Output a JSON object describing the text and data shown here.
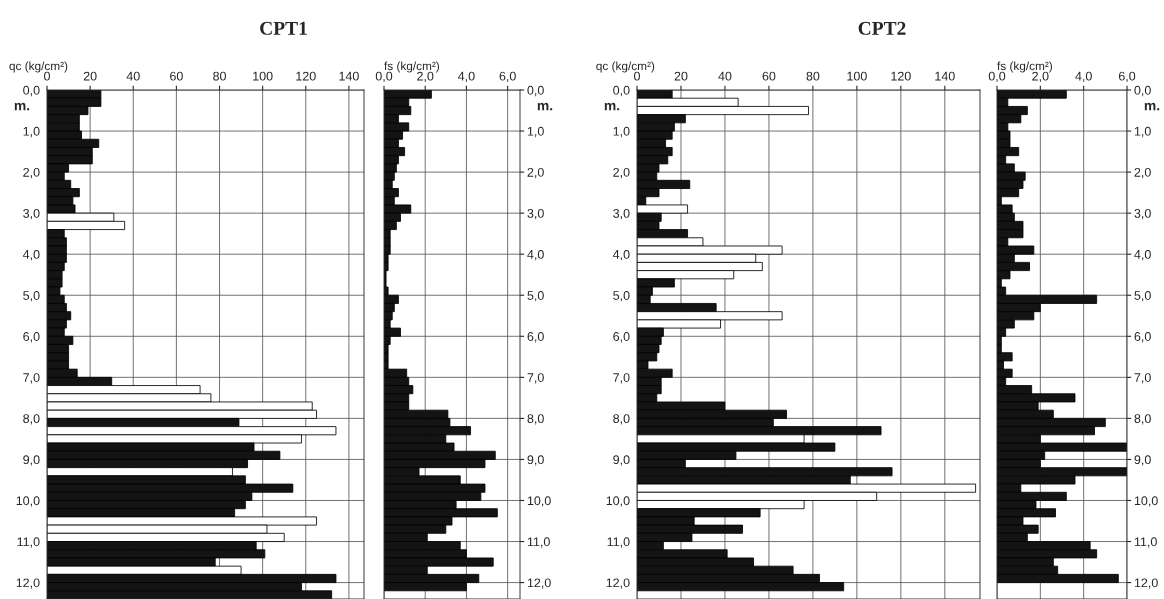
{
  "chart_data": [
    {
      "type": "bar",
      "orientation": "horizontal",
      "title": "CPT1",
      "xlabel": "qc (kg/cm²)",
      "grid": true,
      "annotations": [
        "m."
      ],
      "x": [
        0.1,
        0.3,
        0.5,
        0.7,
        0.9,
        1.1,
        1.3,
        1.5,
        1.7,
        1.9,
        2.1,
        2.3,
        2.5,
        2.7,
        2.9,
        3.1,
        3.3,
        3.5,
        3.7,
        3.9,
        4.1,
        4.3,
        4.5,
        4.7,
        4.9,
        5.1,
        5.3,
        5.5,
        5.7,
        5.9,
        6.1,
        6.3,
        6.5,
        6.7,
        6.9,
        7.1,
        7.3,
        7.5,
        7.7,
        7.9,
        8.1,
        8.3,
        8.5,
        8.7,
        8.9,
        9.1,
        9.3,
        9.5,
        9.7,
        9.9,
        10.1,
        10.3,
        10.5,
        10.7,
        10.9,
        11.1,
        11.3,
        11.5,
        11.7,
        11.9,
        12.1,
        12.3
      ],
      "values": [
        25,
        25,
        19,
        15,
        15,
        16,
        24,
        21,
        21,
        10,
        8,
        11,
        15,
        12,
        13,
        31,
        36,
        8,
        9,
        9,
        9,
        8,
        7,
        7,
        6,
        8,
        9,
        11,
        9,
        8,
        12,
        10,
        10,
        10,
        14,
        30,
        71,
        76,
        123,
        125,
        89,
        134,
        118,
        96,
        108,
        93,
        86,
        92,
        114,
        95,
        92,
        87,
        125,
        102,
        110,
        97,
        101,
        78,
        90,
        134,
        118,
        132
      ],
      "colors": [
        "#141414",
        "#141414",
        "#141414",
        "#141414",
        "#141414",
        "#141414",
        "#141414",
        "#141414",
        "#141414",
        "#141414",
        "#141414",
        "#141414",
        "#141414",
        "#141414",
        "#141414",
        "#ffffff",
        "#ffffff",
        "#141414",
        "#141414",
        "#141414",
        "#141414",
        "#141414",
        "#141414",
        "#141414",
        "#141414",
        "#141414",
        "#141414",
        "#141414",
        "#141414",
        "#141414",
        "#141414",
        "#141414",
        "#141414",
        "#141414",
        "#141414",
        "#141414",
        "#ffffff",
        "#ffffff",
        "#ffffff",
        "#ffffff",
        "#141414",
        "#ffffff",
        "#ffffff",
        "#141414",
        "#141414",
        "#141414",
        "#ffffff",
        "#141414",
        "#141414",
        "#141414",
        "#141414",
        "#141414",
        "#ffffff",
        "#ffffff",
        "#ffffff",
        "#141414",
        "#141414",
        "#141414",
        "#ffffff",
        "#141414",
        "#141414",
        "#141414"
      ],
      "xlim": [
        0,
        147
      ],
      "xticks": [
        0,
        20,
        40,
        60,
        80,
        100,
        120,
        140
      ],
      "ylim": [
        12.4,
        0
      ],
      "yticks": [
        {
          "value": 0,
          "label": "0,0"
        },
        {
          "value": 1,
          "label": "1,0"
        },
        {
          "value": 2,
          "label": "2,0"
        },
        {
          "value": 3,
          "label": "3,0"
        },
        {
          "value": 4,
          "label": "4,0"
        },
        {
          "value": 5,
          "label": "5,0"
        },
        {
          "value": 6,
          "label": "6,0"
        },
        {
          "value": 7,
          "label": "7,0"
        },
        {
          "value": 8,
          "label": "8,0"
        },
        {
          "value": 9,
          "label": "9,0"
        },
        {
          "value": 10,
          "label": "10,0"
        },
        {
          "value": 11,
          "label": "11,0"
        },
        {
          "value": 12,
          "label": "12,0"
        }
      ]
    },
    {
      "type": "bar",
      "orientation": "horizontal",
      "xlabel": "fs (kg/cm²)",
      "grid": true,
      "annotations": [
        "m."
      ],
      "color": "#141414",
      "x": [
        0.1,
        0.3,
        0.5,
        0.7,
        0.9,
        1.1,
        1.3,
        1.5,
        1.7,
        1.9,
        2.1,
        2.3,
        2.5,
        2.7,
        2.9,
        3.1,
        3.3,
        3.5,
        3.7,
        3.9,
        4.1,
        4.3,
        4.5,
        4.7,
        4.9,
        5.1,
        5.3,
        5.5,
        5.7,
        5.9,
        6.1,
        6.3,
        6.5,
        6.7,
        6.9,
        7.1,
        7.3,
        7.5,
        7.7,
        7.9,
        8.1,
        8.3,
        8.5,
        8.7,
        8.9,
        9.1,
        9.3,
        9.5,
        9.7,
        9.9,
        10.1,
        10.3,
        10.5,
        10.7,
        10.9,
        11.1,
        11.3,
        11.5,
        11.7,
        11.9,
        12.1
      ],
      "values": [
        2.3,
        1.2,
        1.3,
        0.7,
        1.2,
        0.9,
        0.7,
        1.0,
        0.7,
        0.6,
        0.5,
        0.4,
        0.7,
        0.5,
        1.3,
        0.8,
        0.6,
        0.3,
        0.3,
        0.3,
        0.2,
        0.2,
        0.1,
        0.1,
        0.2,
        0.7,
        0.5,
        0.4,
        0.3,
        0.8,
        0.3,
        0.2,
        0.2,
        0.2,
        1.1,
        1.2,
        1.4,
        1.2,
        1.2,
        3.1,
        3.2,
        4.2,
        3.0,
        3.4,
        5.4,
        4.9,
        1.7,
        3.7,
        4.9,
        4.7,
        3.5,
        5.5,
        3.3,
        3.0,
        2.1,
        3.7,
        4.0,
        5.3,
        2.1,
        4.6,
        4.0
      ],
      "xlim": [
        0,
        6.6
      ],
      "xticks": [
        {
          "value": 0,
          "label": "0,0"
        },
        {
          "value": 2,
          "label": "2,0"
        },
        {
          "value": 4,
          "label": "4,0"
        },
        {
          "value": 6,
          "label": "6,0"
        }
      ],
      "ylim": [
        12.4,
        0
      ],
      "yticks": [
        {
          "value": 0,
          "label": "0,0"
        },
        {
          "value": 1,
          "label": "1,0"
        },
        {
          "value": 2,
          "label": "2,0"
        },
        {
          "value": 3,
          "label": "3,0"
        },
        {
          "value": 4,
          "label": "4,0"
        },
        {
          "value": 5,
          "label": "5,0"
        },
        {
          "value": 6,
          "label": "6,0"
        },
        {
          "value": 7,
          "label": "7,0"
        },
        {
          "value": 8,
          "label": "8,0"
        },
        {
          "value": 9,
          "label": "9,0"
        },
        {
          "value": 10,
          "label": "10,0"
        },
        {
          "value": 11,
          "label": "11,0"
        },
        {
          "value": 12,
          "label": "12,0"
        }
      ]
    },
    {
      "type": "bar",
      "orientation": "horizontal",
      "title": "CPT2",
      "xlabel": "qc (kg/cm²)",
      "grid": true,
      "annotations": [
        "m."
      ],
      "x": [
        0.1,
        0.3,
        0.5,
        0.7,
        0.9,
        1.1,
        1.3,
        1.5,
        1.7,
        1.9,
        2.1,
        2.3,
        2.5,
        2.7,
        2.9,
        3.1,
        3.3,
        3.5,
        3.7,
        3.9,
        4.1,
        4.3,
        4.5,
        4.7,
        4.9,
        5.1,
        5.3,
        5.5,
        5.7,
        5.9,
        6.1,
        6.3,
        6.5,
        6.7,
        6.9,
        7.1,
        7.3,
        7.5,
        7.7,
        7.9,
        8.1,
        8.3,
        8.5,
        8.7,
        8.9,
        9.1,
        9.3,
        9.5,
        9.7,
        9.9,
        10.1,
        10.3,
        10.5,
        10.7,
        10.9,
        11.1,
        11.3,
        11.5,
        11.7,
        11.9,
        12.1
      ],
      "values": [
        16,
        46,
        78,
        22,
        17,
        16,
        13,
        16,
        14,
        10,
        9,
        24,
        10,
        4,
        23,
        11,
        10,
        23,
        30,
        66,
        54,
        57,
        44,
        17,
        7,
        6,
        36,
        66,
        38,
        12,
        11,
        10,
        9,
        5,
        16,
        11,
        11,
        9,
        40,
        68,
        62,
        111,
        76,
        90,
        45,
        22,
        116,
        97,
        154,
        109,
        76,
        56,
        26,
        48,
        25,
        12,
        41,
        53,
        71,
        83,
        94
      ],
      "colors": [
        "#141414",
        "#ffffff",
        "#ffffff",
        "#141414",
        "#141414",
        "#141414",
        "#141414",
        "#141414",
        "#141414",
        "#141414",
        "#141414",
        "#141414",
        "#141414",
        "#141414",
        "#ffffff",
        "#141414",
        "#141414",
        "#141414",
        "#ffffff",
        "#ffffff",
        "#ffffff",
        "#ffffff",
        "#ffffff",
        "#141414",
        "#141414",
        "#141414",
        "#141414",
        "#ffffff",
        "#ffffff",
        "#141414",
        "#141414",
        "#141414",
        "#141414",
        "#141414",
        "#141414",
        "#141414",
        "#141414",
        "#141414",
        "#141414",
        "#141414",
        "#141414",
        "#141414",
        "#ffffff",
        "#141414",
        "#141414",
        "#141414",
        "#141414",
        "#141414",
        "#ffffff",
        "#ffffff",
        "#ffffff",
        "#141414",
        "#141414",
        "#141414",
        "#141414",
        "#141414",
        "#141414",
        "#141414",
        "#141414",
        "#141414",
        "#141414"
      ],
      "xlim": [
        0,
        156
      ],
      "xticks": [
        0,
        20,
        40,
        60,
        80,
        100,
        120,
        140
      ],
      "ylim": [
        12.4,
        0
      ],
      "yticks": [
        {
          "value": 0,
          "label": "0,0"
        },
        {
          "value": 1,
          "label": "1,0"
        },
        {
          "value": 2,
          "label": "2,0"
        },
        {
          "value": 3,
          "label": "3,0"
        },
        {
          "value": 4,
          "label": "4,0"
        },
        {
          "value": 5,
          "label": "5,0"
        },
        {
          "value": 6,
          "label": "6,0"
        },
        {
          "value": 7,
          "label": "7,0"
        },
        {
          "value": 8,
          "label": "8,0"
        },
        {
          "value": 9,
          "label": "9,0"
        },
        {
          "value": 10,
          "label": "10,0"
        },
        {
          "value": 11,
          "label": "11,0"
        },
        {
          "value": 12,
          "label": "12,0"
        }
      ]
    },
    {
      "type": "bar",
      "orientation": "horizontal",
      "xlabel": "fs (kg/cm²)",
      "grid": true,
      "annotations": [
        "m."
      ],
      "color": "#141414",
      "x": [
        0.1,
        0.3,
        0.5,
        0.7,
        0.9,
        1.1,
        1.3,
        1.5,
        1.7,
        1.9,
        2.1,
        2.3,
        2.5,
        2.7,
        2.9,
        3.1,
        3.3,
        3.5,
        3.7,
        3.9,
        4.1,
        4.3,
        4.5,
        4.7,
        4.9,
        5.1,
        5.3,
        5.5,
        5.7,
        5.9,
        6.1,
        6.3,
        6.5,
        6.7,
        6.9,
        7.1,
        7.3,
        7.5,
        7.7,
        7.9,
        8.1,
        8.3,
        8.5,
        8.7,
        8.9,
        9.1,
        9.3,
        9.5,
        9.7,
        9.9,
        10.1,
        10.3,
        10.5,
        10.7,
        10.9,
        11.1,
        11.3,
        11.5,
        11.7,
        11.9
      ],
      "values": [
        3.2,
        0.5,
        1.4,
        1.1,
        0.5,
        0.6,
        0.6,
        1.0,
        0.4,
        0.8,
        1.3,
        1.2,
        1.0,
        0.2,
        0.7,
        0.8,
        1.2,
        1.2,
        0.5,
        1.7,
        0.8,
        1.5,
        0.6,
        0.2,
        0.4,
        4.6,
        2.0,
        1.7,
        0.8,
        0.4,
        0.2,
        0.2,
        0.7,
        0.3,
        0.7,
        0.4,
        1.6,
        3.6,
        1.9,
        2.6,
        5.0,
        4.5,
        2.0,
        6.0,
        2.2,
        2.0,
        6.0,
        3.6,
        1.1,
        3.2,
        1.8,
        2.7,
        1.2,
        1.9,
        1.4,
        4.3,
        4.6,
        2.6,
        2.8,
        5.6
      ],
      "xlim": [
        0,
        6.0
      ],
      "xticks": [
        {
          "value": 0,
          "label": "0,0"
        },
        {
          "value": 2,
          "label": "2,0"
        },
        {
          "value": 4,
          "label": "4,0"
        },
        {
          "value": 6,
          "label": "6,0"
        }
      ],
      "ylim": [
        12.4,
        0
      ],
      "yticks": [
        {
          "value": 0,
          "label": "0,0"
        },
        {
          "value": 1,
          "label": "1,0"
        },
        {
          "value": 2,
          "label": "2,0"
        },
        {
          "value": 3,
          "label": "3,0"
        },
        {
          "value": 4,
          "label": "4,0"
        },
        {
          "value": 5,
          "label": "5,0"
        },
        {
          "value": 6,
          "label": "6,0"
        },
        {
          "value": 7,
          "label": "7,0"
        },
        {
          "value": 8,
          "label": "8,0"
        },
        {
          "value": 9,
          "label": "9,0"
        },
        {
          "value": 10,
          "label": "10,0"
        },
        {
          "value": 11,
          "label": "11,0"
        },
        {
          "value": 12,
          "label": "12,0"
        }
      ]
    }
  ]
}
